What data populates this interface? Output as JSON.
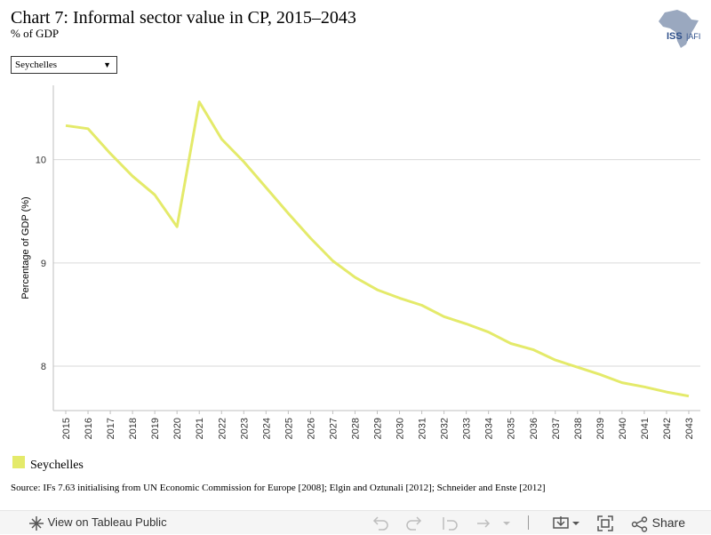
{
  "header": {
    "title": "Chart 7: Informal sector value in CP, 2015–2043",
    "subtitle": "% of GDP",
    "logo_text": "ISS|AFI"
  },
  "filter": {
    "selected": "Seychelles"
  },
  "chart_data": {
    "type": "line",
    "ylabel": "Percentage of GDP (%)",
    "xlabel": "",
    "ylim": [
      7.57,
      10.72
    ],
    "yticks": [
      8,
      9,
      10
    ],
    "grid": true,
    "legend_position": "bottom-left",
    "x": [
      "2015",
      "2016",
      "2017",
      "2018",
      "2019",
      "2020",
      "2021",
      "2022",
      "2023",
      "2024",
      "2025",
      "2026",
      "2027",
      "2028",
      "2029",
      "2030",
      "2031",
      "2032",
      "2033",
      "2034",
      "2035",
      "2036",
      "2037",
      "2038",
      "2039",
      "2040",
      "2041",
      "2042",
      "2043"
    ],
    "series": [
      {
        "name": "Seychelles",
        "color": "#e4ea6a",
        "values": [
          10.33,
          10.3,
          10.06,
          9.84,
          9.66,
          9.35,
          10.56,
          10.2,
          9.98,
          9.73,
          9.48,
          9.24,
          9.02,
          8.86,
          8.74,
          8.66,
          8.59,
          8.48,
          8.41,
          8.33,
          8.22,
          8.16,
          8.06,
          7.99,
          7.92,
          7.84,
          7.8,
          7.75,
          7.71
        ]
      }
    ]
  },
  "legend": {
    "items": [
      {
        "label": "Seychelles",
        "color": "#e4ea6a"
      }
    ]
  },
  "source": "Source: IFs 7.63 initialising from UN Economic Commission for Europe [2008]; Elgin and Oztunali [2012]; Schneider and Enste [2012]",
  "toolbar": {
    "view_label": "View on Tableau Public",
    "share_label": "Share"
  }
}
